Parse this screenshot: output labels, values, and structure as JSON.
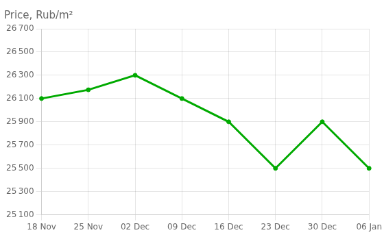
{
  "chart_data": {
    "type": "line",
    "title": "Price, Rub/m²",
    "categories": [
      "18 Nov",
      "25 Nov",
      "02 Dec",
      "09 Dec",
      "16 Dec",
      "23 Dec",
      "30 Dec",
      "06 Jan"
    ],
    "values": [
      26100,
      26175,
      26300,
      26100,
      25900,
      25500,
      25900,
      25500
    ],
    "color": "#00aa00",
    "marker": "circle",
    "ylim": [
      25100,
      26700
    ],
    "yticks": [
      {
        "value": 25100,
        "label": "25 100"
      },
      {
        "value": 25300,
        "label": "25 300"
      },
      {
        "value": 25500,
        "label": "25 500"
      },
      {
        "value": 25700,
        "label": "25 700"
      },
      {
        "value": 25900,
        "label": "25 900"
      },
      {
        "value": 26100,
        "label": "26 100"
      },
      {
        "value": 26300,
        "label": "26 300"
      },
      {
        "value": 26500,
        "label": "26 500"
      },
      {
        "value": 26700,
        "label": "26 700"
      }
    ],
    "grid": true
  }
}
